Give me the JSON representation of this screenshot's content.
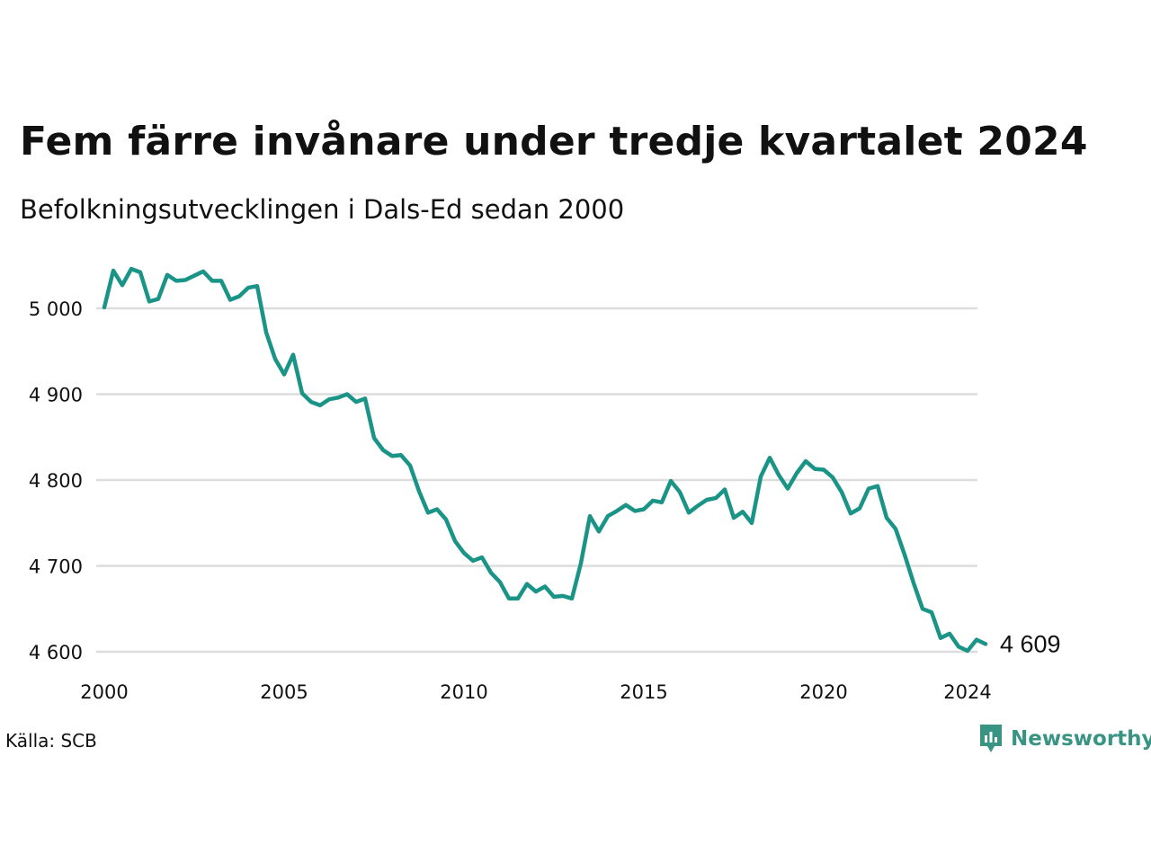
{
  "chart_data": {
    "type": "line",
    "title": "Fem färre invånare under tredje kvartalet 2024",
    "subtitle": "Befolkningsutvecklingen i Dals-Ed sedan 2000",
    "source": "Källa: SCB",
    "brand": "Newsworthy",
    "ylim": [
      4600,
      5000
    ],
    "yticks": [
      {
        "value": 4600,
        "label": "4 600"
      },
      {
        "value": 4700,
        "label": "4 700"
      },
      {
        "value": 4800,
        "label": "4 800"
      },
      {
        "value": 4900,
        "label": "4 900"
      },
      {
        "value": 5000,
        "label": "5 000"
      }
    ],
    "xticks": [
      {
        "value": 2000,
        "label": "2000"
      },
      {
        "value": 2005,
        "label": "2005"
      },
      {
        "value": 2010,
        "label": "2010"
      },
      {
        "value": 2015,
        "label": "2015"
      },
      {
        "value": 2020,
        "label": "2020"
      },
      {
        "value": 2024,
        "label": "2024"
      }
    ],
    "grid": true,
    "end_label": "4 609",
    "colors": {
      "line": "#1a9486",
      "grid": "#dddddd",
      "brand": "#3a9484"
    },
    "series": [
      {
        "x": [
          2000.0,
          2000.25,
          2000.5,
          2000.75,
          2001.0,
          2001.25,
          2001.5,
          2001.75,
          2002.0,
          2002.25,
          2002.5,
          2002.75,
          2003.0,
          2003.25,
          2003.5,
          2003.75,
          2004.0,
          2004.25,
          2004.5,
          2004.75,
          2005.0,
          2005.25,
          2005.5,
          2005.75,
          2006.0,
          2006.25,
          2006.5,
          2006.75,
          2007.0,
          2007.25,
          2007.5,
          2007.75,
          2008.0,
          2008.25,
          2008.5,
          2008.75,
          2009.0,
          2009.25,
          2009.5,
          2009.75,
          2010.0,
          2010.25,
          2010.5,
          2010.75,
          2011.0,
          2011.25,
          2011.5,
          2011.75,
          2012.0,
          2012.25,
          2012.5,
          2012.75,
          2013.0,
          2013.25,
          2013.5,
          2013.75,
          2014.0,
          2014.25,
          2014.5,
          2014.75,
          2015.0,
          2015.25,
          2015.5,
          2015.75,
          2016.0,
          2016.25,
          2016.5,
          2016.75,
          2017.0,
          2017.25,
          2017.5,
          2017.75,
          2018.0,
          2018.25,
          2018.5,
          2018.75,
          2019.0,
          2019.25,
          2019.5,
          2019.75,
          2020.0,
          2020.25,
          2020.5,
          2020.75,
          2021.0,
          2021.25,
          2021.5,
          2021.75,
          2022.0,
          2022.25,
          2022.5,
          2022.75,
          2023.0,
          2023.25,
          2023.5,
          2023.75,
          2024.0,
          2024.25,
          2024.5
        ],
        "values": [
          5001,
          5044,
          5027,
          5046,
          5042,
          5008,
          5011,
          5039,
          5032,
          5033,
          5038,
          5043,
          5032,
          5032,
          5010,
          5014,
          5024,
          5026,
          4972,
          4941,
          4923,
          4946,
          4901,
          4891,
          4887,
          4894,
          4896,
          4900,
          4891,
          4895,
          4849,
          4835,
          4828,
          4829,
          4817,
          4787,
          4762,
          4766,
          4754,
          4729,
          4715,
          4706,
          4710,
          4692,
          4681,
          4662,
          4662,
          4679,
          4670,
          4676,
          4664,
          4665,
          4662,
          4703,
          4758,
          4740,
          4758,
          4764,
          4771,
          4764,
          4766,
          4776,
          4774,
          4799,
          4786,
          4762,
          4770,
          4777,
          4779,
          4789,
          4756,
          4763,
          4750,
          4804,
          4826,
          4806,
          4790,
          4808,
          4822,
          4813,
          4812,
          4803,
          4786,
          4761,
          4767,
          4790,
          4793,
          4756,
          4743,
          4713,
          4680,
          4650,
          4646,
          4616,
          4621,
          4606,
          4601,
          4614,
          4609
        ]
      }
    ]
  }
}
